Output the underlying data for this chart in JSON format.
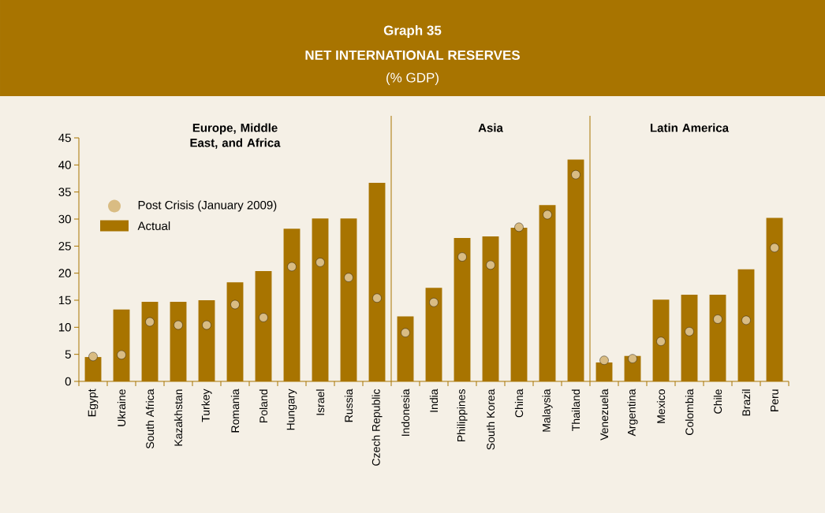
{
  "chart_data": {
    "type": "bar",
    "title": "Graph 35",
    "subtitle": "NET INTERNATIONAL RESERVES",
    "categories": [
      "Egypt",
      "Ukraine",
      "South Africa",
      "Kazakhstan",
      "Turkey",
      "Romania",
      "Poland",
      "Hungary",
      "Israel",
      "Russia",
      "Czech Republic",
      "Indonesia",
      "India",
      "Philippines",
      "South Korea",
      "China",
      "Malaysia",
      "Thailand",
      "Venezuela",
      "Argentina",
      "Mexico",
      "Colombia",
      "Chile",
      "Brazil",
      "Peru"
    ],
    "series": [
      {
        "name": "Actual",
        "color": "#a87400",
        "values": [
          4.5,
          13.3,
          14.7,
          14.7,
          15.0,
          18.3,
          20.4,
          28.2,
          30.1,
          30.1,
          36.7,
          12.0,
          17.3,
          26.5,
          26.8,
          28.4,
          32.6,
          41.0,
          3.5,
          4.7,
          15.1,
          16.0,
          16.0,
          20.7,
          30.2
        ]
      },
      {
        "name": "Post Crisis (January 2009)",
        "type": "scatter",
        "marker": "circle",
        "color": "#d9bc83",
        "values": [
          4.6,
          4.9,
          11.0,
          10.4,
          10.4,
          14.2,
          11.8,
          21.2,
          22.0,
          19.2,
          15.4,
          9.0,
          14.6,
          23.0,
          21.5,
          28.5,
          30.8,
          38.2,
          3.9,
          4.2,
          7.4,
          9.2,
          11.5,
          11.3,
          24.7
        ]
      }
    ],
    "ylim": [
      0,
      45
    ],
    "yticks": [
      0,
      5,
      10,
      15,
      20,
      25,
      30,
      35,
      40,
      45
    ],
    "legend": "top left",
    "annotations": [
      "(% GDP)",
      "Europe, Middle East, and Africa",
      "Asia",
      "Latin America"
    ]
  }
}
